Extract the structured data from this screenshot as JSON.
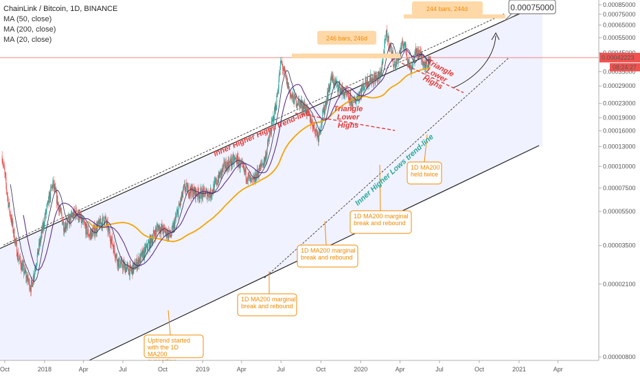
{
  "header": {
    "symbol": "ChainLink / Bitcoin, 1D, BINANCE",
    "indicators": [
      "MA (50, close)",
      "MA (200, close)",
      "MA (20, close)"
    ]
  },
  "colors": {
    "channel_fill": "#eef0ff",
    "ma50": "#5b2c8a",
    "ma200": "#f4a300",
    "ma20": "#3a3a66",
    "candle_up": "#26a69a",
    "candle_down": "#ef5350",
    "price_line": "#ef5350",
    "trendline_red": "#e53935",
    "trendline_teal": "#26a69a",
    "annotation_orange": "#f08a00"
  },
  "price_axis": {
    "scale": "log",
    "ticks": [
      "0.00085000",
      "0.00075000",
      "0.00065000",
      "0.00055000",
      "0.00045000",
      "0.00035000",
      "0.00029000",
      "0.00023000",
      "0.00019000",
      "0.00016000",
      "0.00013000",
      "0.00010000",
      "0.00007500",
      "0.00005500",
      "0.00003500",
      "0.00002100",
      "0.00000800"
    ],
    "current_price": "0.00042223",
    "countdown": "08:24:27"
  },
  "time_axis": {
    "ticks": [
      "Oct",
      "2018",
      "Apr",
      "Jul",
      "Oct",
      "2019",
      "Apr",
      "Jul",
      "Oct",
      "2020",
      "Apr",
      "Jul",
      "Oct",
      "2021",
      "Apr"
    ]
  },
  "chart_data": {
    "type": "candlestick",
    "title": "ChainLink / Bitcoin, 1D, BINANCE",
    "scale": "log",
    "ylim": [
      8e-06,
      0.00085
    ],
    "xlim": [
      "2017-09-20",
      "2021-06-15"
    ],
    "series": [
      {
        "name": "LINK/BTC close (approx.)",
        "points": [
          [
            "2017-09-25",
            0.000115
          ],
          [
            "2017-10-10",
            6e-05
          ],
          [
            "2017-11-01",
            3e-05
          ],
          [
            "2017-12-01",
            2e-05
          ],
          [
            "2018-01-01",
            5e-05
          ],
          [
            "2018-01-20",
            8e-05
          ],
          [
            "2018-02-15",
            4.5e-05
          ],
          [
            "2018-03-15",
            5.5e-05
          ],
          [
            "2018-04-15",
            4e-05
          ],
          [
            "2018-05-20",
            5e-05
          ],
          [
            "2018-06-20",
            2.8e-05
          ],
          [
            "2018-07-20",
            2.5e-05
          ],
          [
            "2018-08-20",
            3.2e-05
          ],
          [
            "2018-09-20",
            4.5e-05
          ],
          [
            "2018-10-20",
            4e-05
          ],
          [
            "2018-11-20",
            7.5e-05
          ],
          [
            "2018-12-20",
            7e-05
          ],
          [
            "2019-01-20",
            7e-05
          ],
          [
            "2019-02-20",
            0.0001
          ],
          [
            "2019-03-20",
            0.00011
          ],
          [
            "2019-04-25",
            8e-05
          ],
          [
            "2019-05-25",
            0.00011
          ],
          [
            "2019-06-20",
            0.00023
          ],
          [
            "2019-07-01",
            0.0004
          ],
          [
            "2019-07-25",
            0.00025
          ],
          [
            "2019-08-25",
            0.00022
          ],
          [
            "2019-09-25",
            0.00015
          ],
          [
            "2019-10-25",
            0.00032
          ],
          [
            "2019-11-20",
            0.00027
          ],
          [
            "2019-12-15",
            0.00023
          ],
          [
            "2020-01-15",
            0.00031
          ],
          [
            "2020-02-15",
            0.00033
          ],
          [
            "2020-03-01",
            0.00058
          ],
          [
            "2020-03-20",
            0.00038
          ],
          [
            "2020-04-10",
            0.00052
          ],
          [
            "2020-04-25",
            0.00036
          ],
          [
            "2020-05-10",
            0.00047
          ],
          [
            "2020-06-01",
            0.00038
          ],
          [
            "2020-06-10",
            0.000422
          ]
        ]
      },
      {
        "name": "MA (200, close)",
        "points": [
          [
            "2018-05-01",
            5.5e-05
          ],
          [
            "2018-08-01",
            3.8e-05
          ],
          [
            "2018-11-01",
            4e-05
          ],
          [
            "2019-02-01",
            5e-05
          ],
          [
            "2019-05-01",
            7e-05
          ],
          [
            "2019-08-01",
            0.00013
          ],
          [
            "2019-11-01",
            0.00018
          ],
          [
            "2020-02-01",
            0.00024
          ],
          [
            "2020-05-01",
            0.00032
          ],
          [
            "2020-06-10",
            0.00036
          ]
        ]
      }
    ],
    "annotations": [
      {
        "text": "Uptrend started with the 1D MA200 supporting",
        "date": "2018-08-25"
      },
      {
        "text": "1D MA200 marginal break and rebound",
        "date": "2019-01-10"
      },
      {
        "text": "1D MA200 marginal break and rebound",
        "date": "2019-08-20"
      },
      {
        "text": "1D MA200 marginal break and rebound",
        "date": "2019-12-20"
      },
      {
        "text": "1D MA200 held twice",
        "date": "2020-05-10"
      },
      {
        "text": "246 bars, 246d"
      },
      {
        "text": "244 bars, 244d"
      },
      {
        "text": "0.00075000"
      },
      {
        "text": "Inner Higher Highs trend-line"
      },
      {
        "text": "Inner Higher Lows trend-line"
      },
      {
        "text": "Triangle Lower Highs"
      },
      {
        "text": "Triangle Lower Highs"
      }
    ]
  }
}
